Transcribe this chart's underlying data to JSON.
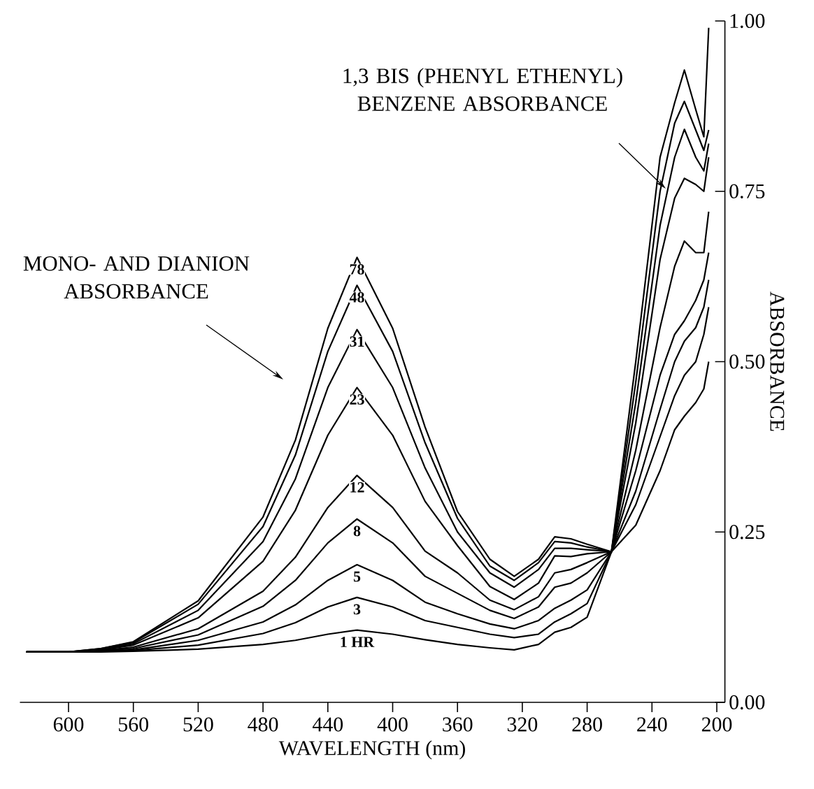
{
  "chart_data": {
    "type": "line",
    "xlabel": "WAVELENGTH (nm)",
    "ylabel": "ABSORBANCE",
    "x": [
      626,
      600,
      580,
      560,
      520,
      480,
      460,
      440,
      422,
      400,
      380,
      360,
      340,
      325,
      310,
      300,
      290,
      280,
      265,
      250,
      235,
      226,
      220,
      213,
      208,
      205
    ],
    "xlim": [
      630,
      195
    ],
    "xticks": [
      600,
      560,
      520,
      480,
      440,
      400,
      360,
      320,
      280,
      240,
      200
    ],
    "ylim": [
      0,
      1.0
    ],
    "yticks": [
      {
        "value": 0,
        "label": "0.00"
      },
      {
        "value": 0.25,
        "label": "0.25"
      },
      {
        "value": 0.5,
        "label": "0.50"
      },
      {
        "value": 0.75,
        "label": "0.75"
      },
      {
        "value": 1.0,
        "label": "1.00"
      }
    ],
    "legend": false,
    "grid": false,
    "marker": "none",
    "line_style": "solid",
    "series": [
      {
        "name": "1 HR",
        "color": "#000000",
        "values": [
          0.074,
          0.074,
          0.074,
          0.075,
          0.078,
          0.085,
          0.091,
          0.1,
          0.106,
          0.1,
          0.092,
          0.085,
          0.08,
          0.077,
          0.085,
          0.103,
          0.11,
          0.125,
          0.221,
          0.26,
          0.34,
          0.4,
          0.42,
          0.44,
          0.46,
          0.5
        ]
      },
      {
        "name": "3",
        "color": "#000000",
        "values": [
          0.074,
          0.074,
          0.075,
          0.076,
          0.084,
          0.101,
          0.117,
          0.14,
          0.154,
          0.14,
          0.12,
          0.11,
          0.1,
          0.095,
          0.1,
          0.118,
          0.13,
          0.145,
          0.221,
          0.29,
          0.39,
          0.45,
          0.48,
          0.5,
          0.54,
          0.58
        ]
      },
      {
        "name": "5",
        "color": "#000000",
        "values": [
          0.074,
          0.074,
          0.075,
          0.077,
          0.091,
          0.118,
          0.143,
          0.179,
          0.202,
          0.179,
          0.147,
          0.13,
          0.115,
          0.108,
          0.12,
          0.138,
          0.15,
          0.165,
          0.221,
          0.31,
          0.43,
          0.5,
          0.53,
          0.55,
          0.58,
          0.62
        ]
      },
      {
        "name": "8",
        "color": "#000000",
        "values": [
          0.074,
          0.074,
          0.076,
          0.079,
          0.099,
          0.141,
          0.179,
          0.234,
          0.269,
          0.234,
          0.185,
          0.16,
          0.135,
          0.123,
          0.14,
          0.169,
          0.175,
          0.19,
          0.221,
          0.34,
          0.48,
          0.54,
          0.56,
          0.59,
          0.62,
          0.66
        ]
      },
      {
        "name": "12",
        "color": "#000000",
        "values": [
          0.074,
          0.074,
          0.076,
          0.081,
          0.108,
          0.163,
          0.213,
          0.286,
          0.333,
          0.286,
          0.222,
          0.19,
          0.15,
          0.136,
          0.155,
          0.19,
          0.195,
          0.205,
          0.221,
          0.37,
          0.55,
          0.64,
          0.677,
          0.66,
          0.66,
          0.72
        ]
      },
      {
        "name": "23",
        "color": "#000000",
        "values": [
          0.074,
          0.074,
          0.077,
          0.084,
          0.124,
          0.207,
          0.282,
          0.392,
          0.462,
          0.392,
          0.295,
          0.23,
          0.17,
          0.151,
          0.175,
          0.215,
          0.214,
          0.218,
          0.221,
          0.41,
          0.65,
          0.74,
          0.769,
          0.76,
          0.75,
          0.8
        ]
      },
      {
        "name": "31",
        "color": "#000000",
        "values": [
          0.074,
          0.074,
          0.078,
          0.086,
          0.135,
          0.236,
          0.328,
          0.462,
          0.547,
          0.462,
          0.344,
          0.25,
          0.19,
          0.169,
          0.195,
          0.226,
          0.226,
          0.224,
          0.221,
          0.44,
          0.7,
          0.8,
          0.841,
          0.8,
          0.78,
          0.82
        ]
      },
      {
        "name": "48",
        "color": "#000000",
        "values": [
          0.074,
          0.074,
          0.079,
          0.088,
          0.144,
          0.258,
          0.363,
          0.515,
          0.612,
          0.515,
          0.381,
          0.27,
          0.2,
          0.179,
          0.205,
          0.236,
          0.234,
          0.228,
          0.221,
          0.47,
          0.75,
          0.85,
          0.882,
          0.84,
          0.81,
          0.84
        ]
      },
      {
        "name": "78",
        "color": "#000000",
        "values": [
          0.074,
          0.074,
          0.079,
          0.089,
          0.149,
          0.272,
          0.385,
          0.549,
          0.653,
          0.549,
          0.404,
          0.28,
          0.21,
          0.185,
          0.21,
          0.243,
          0.24,
          0.232,
          0.221,
          0.5,
          0.8,
          0.88,
          0.928,
          0.87,
          0.83,
          0.99
        ]
      }
    ],
    "annotations": [
      "MONO- AND DIANION ABSORBANCE",
      "1,3 BIS (PHENYL ETHENYL) BENZENE ABSORBANCE"
    ]
  }
}
